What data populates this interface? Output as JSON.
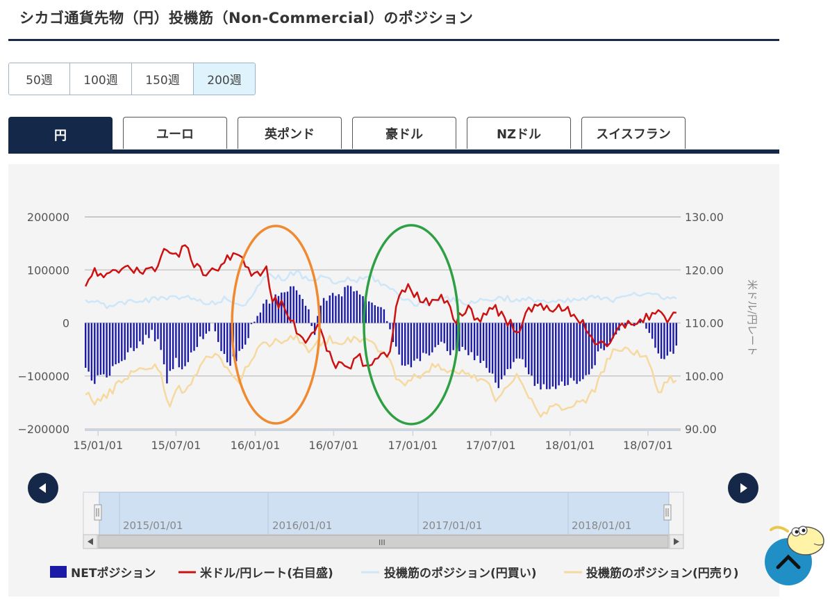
{
  "page": {
    "title": "シカゴ通貨先物（円）投機筋（Non-Commercial）のポジション"
  },
  "period_buttons": [
    {
      "label": "50週",
      "active": false
    },
    {
      "label": "100週",
      "active": false
    },
    {
      "label": "150週",
      "active": false
    },
    {
      "label": "200週",
      "active": true
    }
  ],
  "currency_tabs": [
    {
      "label": "円",
      "active": true
    },
    {
      "label": "ユーロ",
      "active": false
    },
    {
      "label": "英ポンド",
      "active": false
    },
    {
      "label": "豪ドル",
      "active": false
    },
    {
      "label": "NZドル",
      "active": false
    },
    {
      "label": "スイスフラン",
      "active": false
    }
  ],
  "navigator": {
    "labels": [
      "2015/01/01",
      "2016/01/01",
      "2017/01/01",
      "2018/01/01"
    ],
    "scroll_label": "III"
  },
  "colors": {
    "net": "#1a1aa6",
    "rate": "#cc1111",
    "long": "#cde6f8",
    "short": "#f6d9a0",
    "orange_circle": "#f08a30",
    "green_circle": "#2ea043",
    "nav": "#16284a"
  },
  "chart_data": {
    "type": "bar",
    "x_start": "2014/12/01",
    "x_end": "2018/09/15",
    "xticks": [
      "15/01/01",
      "15/07/01",
      "16/01/01",
      "16/07/01",
      "17/01/01",
      "17/07/01",
      "18/01/01",
      "18/07/01"
    ],
    "y_left": {
      "min": -200000,
      "max": 200000,
      "ticks": [
        "200000",
        "100000",
        "0",
        "−100000",
        "−200000"
      ]
    },
    "y_right": {
      "min": 90,
      "max": 130,
      "ticks": [
        "130.00",
        "120.00",
        "110.00",
        "100.00",
        "90.00"
      ],
      "label": "米ドル/円レート"
    },
    "series": [
      {
        "name": "NETポジション",
        "kind": "bar",
        "axis": "left",
        "anchors": [
          [
            "2014/12/01",
            -85000
          ],
          [
            "2014/12/22",
            -108000
          ],
          [
            "2015/01/19",
            -100000
          ],
          [
            "2015/02/16",
            -80000
          ],
          [
            "2015/03/16",
            -55000
          ],
          [
            "2015/04/13",
            -35000
          ],
          [
            "2015/05/04",
            -18000
          ],
          [
            "2015/05/25",
            -40000
          ],
          [
            "2015/06/08",
            -110000
          ],
          [
            "2015/06/29",
            -70000
          ],
          [
            "2015/07/20",
            -85000
          ],
          [
            "2015/08/10",
            -55000
          ],
          [
            "2015/08/31",
            -25000
          ],
          [
            "2015/09/14",
            -12000
          ],
          [
            "2015/09/28",
            -3000
          ],
          [
            "2015/10/12",
            -50000
          ],
          [
            "2015/11/02",
            -75000
          ],
          [
            "2015/11/23",
            -62000
          ],
          [
            "2015/12/14",
            -25000
          ],
          [
            "2016/01/04",
            18000
          ],
          [
            "2016/02/01",
            40000
          ],
          [
            "2016/03/07",
            62000
          ],
          [
            "2016/04/04",
            65000
          ],
          [
            "2016/04/18",
            55000
          ],
          [
            "2016/05/02",
            25000
          ],
          [
            "2016/05/16",
            -25000
          ],
          [
            "2016/05/30",
            30000
          ],
          [
            "2016/06/20",
            52000
          ],
          [
            "2016/07/11",
            48000
          ],
          [
            "2016/08/08",
            70000
          ],
          [
            "2016/09/05",
            58000
          ],
          [
            "2016/10/03",
            38000
          ],
          [
            "2016/10/31",
            15000
          ],
          [
            "2016/11/14",
            -35000
          ],
          [
            "2016/12/12",
            -85000
          ],
          [
            "2017/01/09",
            -75000
          ],
          [
            "2017/02/06",
            -55000
          ],
          [
            "2017/03/06",
            -40000
          ],
          [
            "2017/04/03",
            -58000
          ],
          [
            "2017/05/01",
            -50000
          ],
          [
            "2017/05/29",
            -68000
          ],
          [
            "2017/06/26",
            -85000
          ],
          [
            "2017/07/17",
            -118000
          ],
          [
            "2017/08/07",
            -95000
          ],
          [
            "2017/08/28",
            -62000
          ],
          [
            "2017/09/18",
            -78000
          ],
          [
            "2017/10/09",
            -112000
          ],
          [
            "2017/11/06",
            -125000
          ],
          [
            "2017/12/04",
            -118000
          ],
          [
            "2017/12/25",
            -112000
          ],
          [
            "2018/01/22",
            -108000
          ],
          [
            "2018/02/19",
            -88000
          ],
          [
            "2018/03/12",
            -52000
          ],
          [
            "2018/04/02",
            -32000
          ],
          [
            "2018/04/23",
            -18000
          ],
          [
            "2018/05/07",
            -3000
          ],
          [
            "2018/05/28",
            1000
          ],
          [
            "2018/06/25",
            2000
          ],
          [
            "2018/07/09",
            -35000
          ],
          [
            "2018/08/06",
            -68000
          ],
          [
            "2018/09/03",
            -50000
          ]
        ]
      },
      {
        "name": "米ドル/円レート(右目盛)",
        "kind": "line",
        "axis": "right",
        "anchors": [
          [
            "2014/12/01",
            116.2
          ],
          [
            "2014/12/22",
            120.0
          ],
          [
            "2015/01/12",
            118.0
          ],
          [
            "2015/02/09",
            119.5
          ],
          [
            "2015/03/09",
            121.0
          ],
          [
            "2015/04/13",
            119.8
          ],
          [
            "2015/05/11",
            119.5
          ],
          [
            "2015/06/01",
            124.5
          ],
          [
            "2015/06/15",
            123.0
          ],
          [
            "2015/06/29",
            122.8
          ],
          [
            "2015/07/27",
            124.0
          ],
          [
            "2015/08/24",
            119.5
          ],
          [
            "2015/09/14",
            120.0
          ],
          [
            "2015/10/05",
            120.2
          ],
          [
            "2015/11/02",
            122.5
          ],
          [
            "2015/12/07",
            121.8
          ],
          [
            "2016/01/04",
            118.5
          ],
          [
            "2016/01/25",
            121.0
          ],
          [
            "2016/02/08",
            114.5
          ],
          [
            "2016/03/07",
            113.0
          ],
          [
            "2016/04/11",
            108.0
          ],
          [
            "2016/05/02",
            107.0
          ],
          [
            "2016/05/23",
            110.0
          ],
          [
            "2016/06/13",
            105.0
          ],
          [
            "2016/07/04",
            101.5
          ],
          [
            "2016/08/01",
            102.0
          ],
          [
            "2016/08/29",
            103.5
          ],
          [
            "2016/09/26",
            101.5
          ],
          [
            "2016/10/17",
            104.0
          ],
          [
            "2016/11/07",
            104.5
          ],
          [
            "2016/11/28",
            114.5
          ],
          [
            "2016/12/19",
            117.5
          ],
          [
            "2017/01/16",
            114.5
          ],
          [
            "2017/02/13",
            113.5
          ],
          [
            "2017/03/13",
            114.5
          ],
          [
            "2017/04/10",
            110.5
          ],
          [
            "2017/05/08",
            113.0
          ],
          [
            "2017/06/05",
            110.5
          ],
          [
            "2017/07/10",
            113.5
          ],
          [
            "2017/08/07",
            110.0
          ],
          [
            "2017/09/04",
            109.0
          ],
          [
            "2017/10/02",
            112.5
          ],
          [
            "2017/11/06",
            113.5
          ],
          [
            "2017/12/04",
            112.5
          ],
          [
            "2018/01/08",
            112.0
          ],
          [
            "2018/02/05",
            109.5
          ],
          [
            "2018/03/05",
            106.0
          ],
          [
            "2018/03/26",
            105.0
          ],
          [
            "2018/04/23",
            108.5
          ],
          [
            "2018/05/21",
            110.5
          ],
          [
            "2018/06/18",
            110.0
          ],
          [
            "2018/07/16",
            112.5
          ],
          [
            "2018/08/13",
            110.8
          ],
          [
            "2018/09/10",
            111.0
          ]
        ]
      },
      {
        "name": "投機筋のポジション(円買い)",
        "kind": "line",
        "axis": "left",
        "anchors": [
          [
            "2014/12/01",
            46000
          ],
          [
            "2014/12/29",
            40000
          ],
          [
            "2015/02/02",
            30000
          ],
          [
            "2015/03/02",
            38000
          ],
          [
            "2015/04/06",
            45000
          ],
          [
            "2015/05/04",
            42000
          ],
          [
            "2015/06/01",
            48000
          ],
          [
            "2015/06/29",
            45000
          ],
          [
            "2015/07/27",
            50000
          ],
          [
            "2015/08/24",
            40000
          ],
          [
            "2015/09/21",
            35000
          ],
          [
            "2015/10/19",
            45000
          ],
          [
            "2015/11/16",
            35000
          ],
          [
            "2015/12/14",
            40000
          ],
          [
            "2016/01/11",
            75000
          ],
          [
            "2016/02/08",
            90000
          ],
          [
            "2016/03/07",
            85000
          ],
          [
            "2016/04/04",
            95000
          ],
          [
            "2016/05/02",
            80000
          ],
          [
            "2016/06/06",
            85000
          ],
          [
            "2016/07/04",
            75000
          ],
          [
            "2016/08/01",
            82000
          ],
          [
            "2016/08/29",
            80000
          ],
          [
            "2016/09/26",
            88000
          ],
          [
            "2016/10/24",
            72000
          ],
          [
            "2016/11/21",
            58000
          ],
          [
            "2016/12/19",
            42000
          ],
          [
            "2017/01/16",
            35000
          ],
          [
            "2017/02/13",
            38000
          ],
          [
            "2017/03/13",
            52000
          ],
          [
            "2017/04/10",
            40000
          ],
          [
            "2017/05/08",
            38000
          ],
          [
            "2017/06/05",
            42000
          ],
          [
            "2017/07/03",
            45000
          ],
          [
            "2017/08/07",
            48000
          ],
          [
            "2017/09/04",
            40000
          ],
          [
            "2017/10/09",
            45000
          ],
          [
            "2017/11/06",
            40000
          ],
          [
            "2017/12/04",
            38000
          ],
          [
            "2018/01/08",
            42000
          ],
          [
            "2018/02/05",
            45000
          ],
          [
            "2018/03/05",
            48000
          ],
          [
            "2018/04/02",
            42000
          ],
          [
            "2018/04/30",
            52000
          ],
          [
            "2018/05/28",
            58000
          ],
          [
            "2018/06/25",
            50000
          ],
          [
            "2018/07/23",
            55000
          ],
          [
            "2018/08/20",
            45000
          ],
          [
            "2018/09/10",
            48000
          ]
        ]
      },
      {
        "name": "投機筋のポジション(円売り)",
        "kind": "line",
        "axis": "left",
        "anchors": [
          [
            "2014/12/01",
            -125000
          ],
          [
            "2014/12/22",
            -150000
          ],
          [
            "2015/01/19",
            -140000
          ],
          [
            "2015/02/16",
            -115000
          ],
          [
            "2015/03/16",
            -95000
          ],
          [
            "2015/04/13",
            -85000
          ],
          [
            "2015/05/11",
            -80000
          ],
          [
            "2015/05/25",
            -95000
          ],
          [
            "2015/06/15",
            -155000
          ],
          [
            "2015/07/06",
            -120000
          ],
          [
            "2015/07/27",
            -130000
          ],
          [
            "2015/08/24",
            -80000
          ],
          [
            "2015/09/14",
            -62000
          ],
          [
            "2015/10/05",
            -60000
          ],
          [
            "2015/10/26",
            -90000
          ],
          [
            "2015/11/23",
            -110000
          ],
          [
            "2015/12/14",
            -80000
          ],
          [
            "2016/01/11",
            -45000
          ],
          [
            "2016/02/08",
            -35000
          ],
          [
            "2016/03/07",
            -30000
          ],
          [
            "2016/04/04",
            -28000
          ],
          [
            "2016/05/02",
            -55000
          ],
          [
            "2016/05/23",
            -40000
          ],
          [
            "2016/06/20",
            -30000
          ],
          [
            "2016/07/18",
            -35000
          ],
          [
            "2016/08/15",
            -28000
          ],
          [
            "2016/09/12",
            -30000
          ],
          [
            "2016/10/10",
            -45000
          ],
          [
            "2016/11/07",
            -70000
          ],
          [
            "2016/12/05",
            -120000
          ],
          [
            "2017/01/02",
            -105000
          ],
          [
            "2017/01/30",
            -90000
          ],
          [
            "2017/02/27",
            -80000
          ],
          [
            "2017/03/27",
            -95000
          ],
          [
            "2017/04/24",
            -90000
          ],
          [
            "2017/05/22",
            -105000
          ],
          [
            "2017/06/19",
            -100000
          ],
          [
            "2017/07/10",
            -145000
          ],
          [
            "2017/08/07",
            -125000
          ],
          [
            "2017/08/28",
            -100000
          ],
          [
            "2017/09/25",
            -130000
          ],
          [
            "2017/10/16",
            -175000
          ],
          [
            "2017/11/06",
            -165000
          ],
          [
            "2017/12/04",
            -155000
          ],
          [
            "2018/01/01",
            -160000
          ],
          [
            "2018/01/29",
            -150000
          ],
          [
            "2018/02/26",
            -130000
          ],
          [
            "2018/03/19",
            -90000
          ],
          [
            "2018/04/09",
            -55000
          ],
          [
            "2018/05/07",
            -50000
          ],
          [
            "2018/06/04",
            -55000
          ],
          [
            "2018/07/02",
            -70000
          ],
          [
            "2018/07/23",
            -135000
          ],
          [
            "2018/08/20",
            -108000
          ],
          [
            "2018/09/10",
            -100000
          ]
        ]
      }
    ],
    "legend_position": "bottom"
  }
}
